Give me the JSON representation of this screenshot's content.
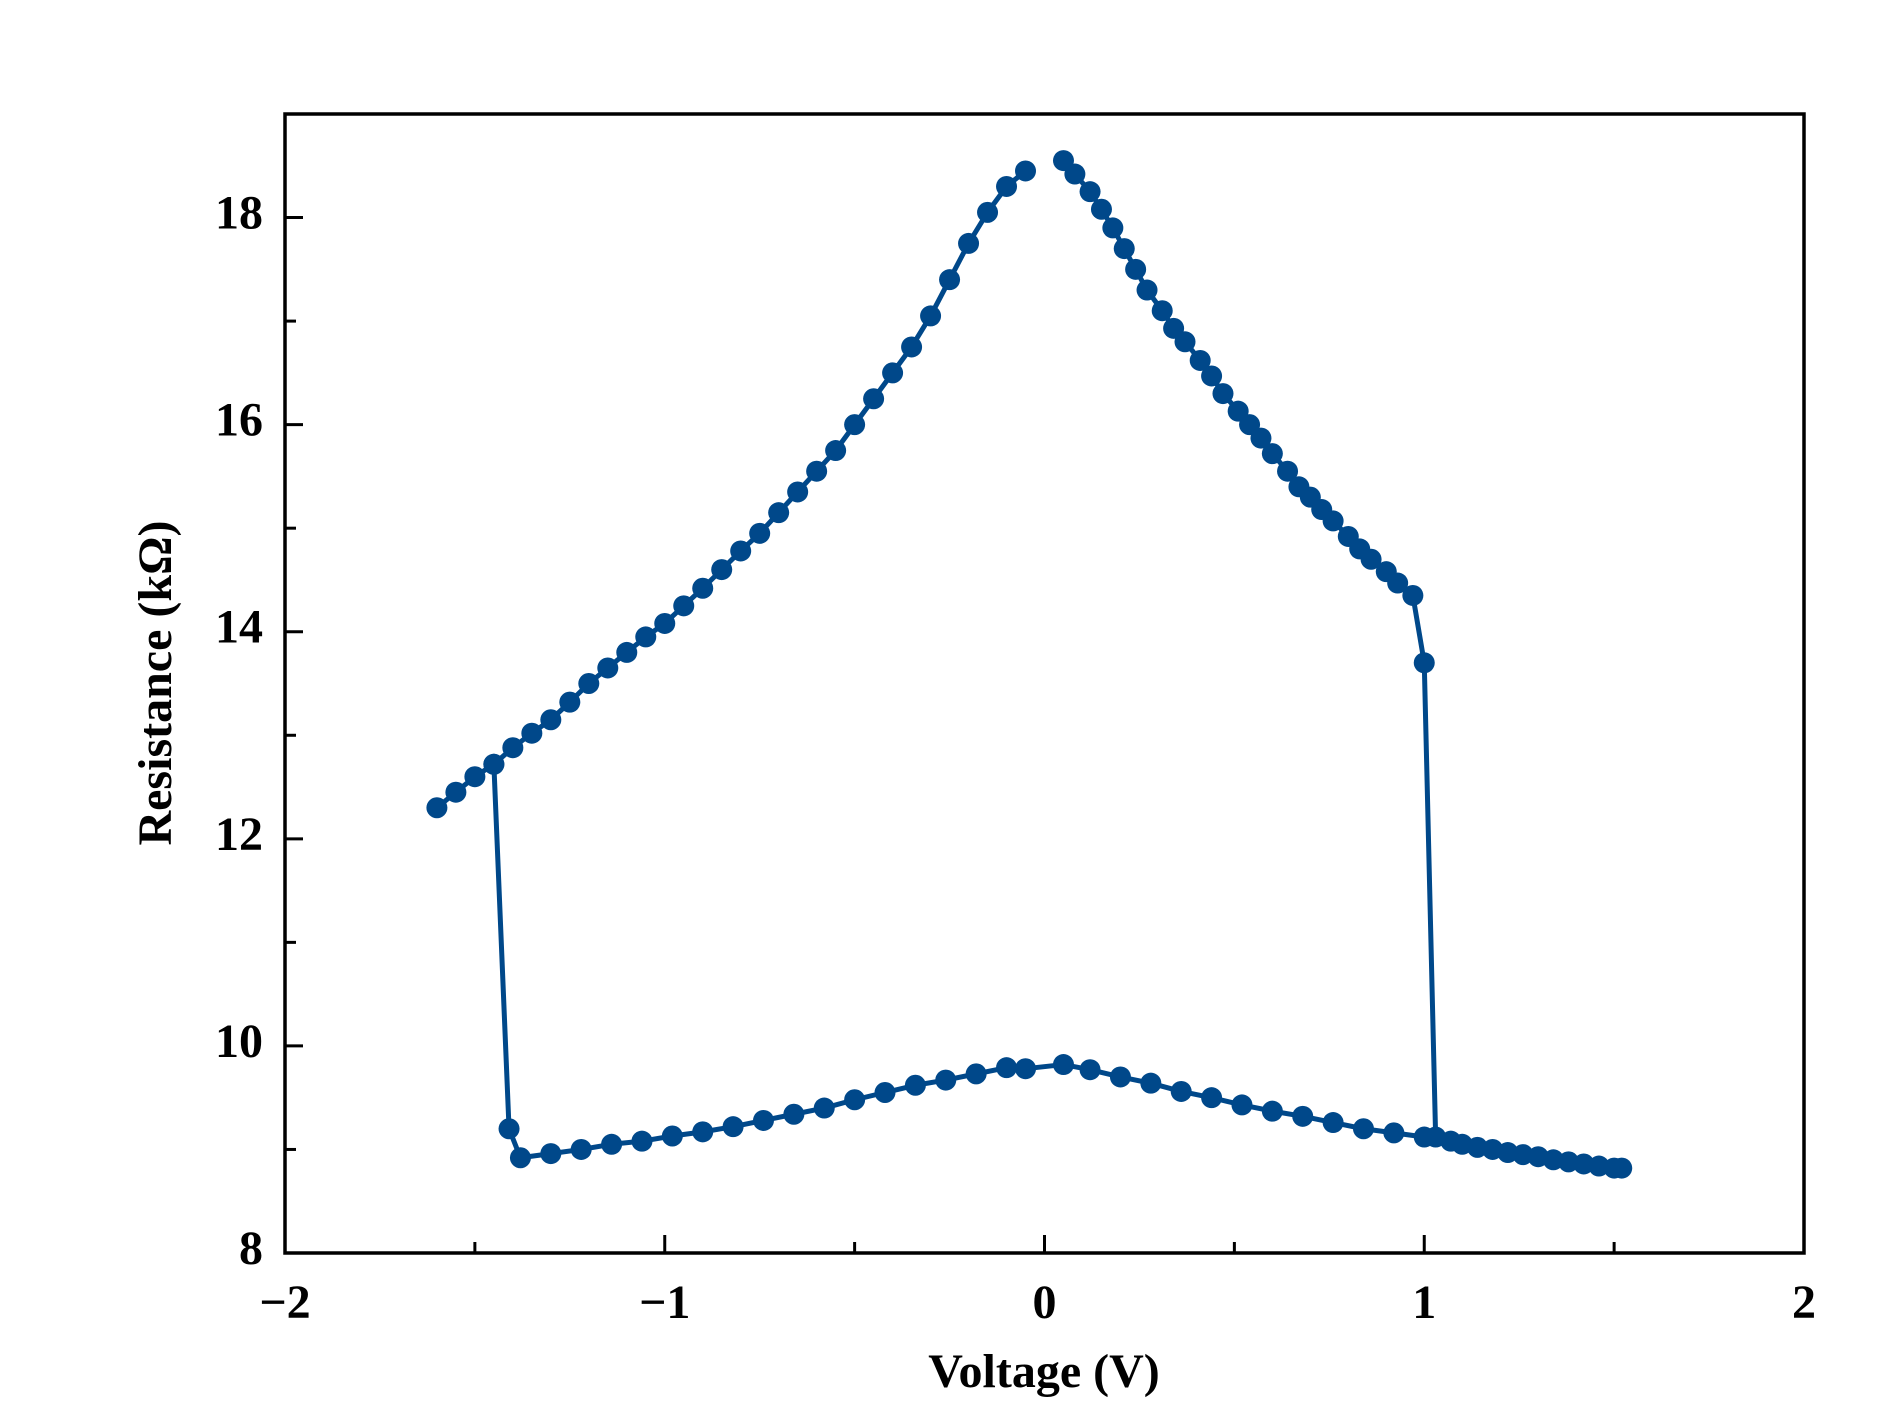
{
  "chart_data": {
    "type": "line",
    "xlabel": "Voltage (V)",
    "ylabel": "Resistance (kΩ)",
    "x": [
      -1.6,
      -1.55,
      -1.5,
      -1.45,
      -1.4,
      -1.35,
      -1.3,
      -1.25,
      -1.2,
      -1.15,
      -1.1,
      -1.05,
      -1.0,
      -0.95,
      -0.9,
      -0.85,
      -0.8,
      -0.75,
      -0.7,
      -0.65,
      -0.6,
      -0.55,
      -0.5,
      -0.45,
      -0.4,
      -0.35,
      -0.3,
      -0.25,
      -0.2,
      -0.15,
      -0.1,
      -0.05,
      null,
      0.05,
      0.08,
      0.12,
      0.15,
      0.18,
      0.21,
      0.24,
      0.27,
      0.31,
      0.34,
      0.37,
      0.41,
      0.44,
      0.47,
      0.51,
      0.54,
      0.57,
      0.6,
      0.64,
      0.67,
      0.7,
      0.73,
      0.76,
      0.8,
      0.83,
      0.86,
      0.9,
      0.93,
      0.97,
      1.0,
      1.03,
      1.07,
      1.1,
      1.14,
      1.18,
      1.22,
      1.26,
      1.3,
      1.34,
      1.38,
      1.42,
      1.46,
      1.5,
      1.52,
      null,
      -1.45,
      -1.41,
      -1.38,
      -1.3,
      -1.22,
      -1.14,
      -1.06,
      -0.98,
      -0.9,
      -0.82,
      -0.74,
      -0.66,
      -0.58,
      -0.5,
      -0.42,
      -0.34,
      -0.26,
      -0.18,
      -0.1,
      -0.05,
      0.05,
      0.12,
      0.2,
      0.28,
      0.36,
      0.44,
      0.52,
      0.6,
      0.68,
      0.76,
      0.84,
      0.92,
      1.0
    ],
    "series": [
      {
        "color": "#00488a",
        "values": [
          12.3,
          12.45,
          12.6,
          12.72,
          12.88,
          13.02,
          13.15,
          13.32,
          13.5,
          13.65,
          13.8,
          13.95,
          14.08,
          14.25,
          14.42,
          14.6,
          14.78,
          14.95,
          15.15,
          15.35,
          15.55,
          15.75,
          16.0,
          16.25,
          16.5,
          16.75,
          17.05,
          17.4,
          17.75,
          18.05,
          18.3,
          18.45,
          null,
          18.55,
          18.42,
          18.25,
          18.08,
          17.9,
          17.7,
          17.5,
          17.3,
          17.1,
          16.93,
          16.8,
          16.62,
          16.47,
          16.3,
          16.13,
          16.0,
          15.87,
          15.72,
          15.55,
          15.4,
          15.3,
          15.18,
          15.07,
          14.92,
          14.8,
          14.7,
          14.58,
          14.47,
          14.35,
          13.7,
          9.12,
          9.08,
          9.05,
          9.02,
          9.0,
          8.97,
          8.95,
          8.93,
          8.9,
          8.88,
          8.86,
          8.84,
          8.82,
          8.82,
          null,
          12.72,
          9.2,
          8.92,
          8.96,
          9.0,
          9.05,
          9.08,
          9.13,
          9.17,
          9.22,
          9.28,
          9.34,
          9.4,
          9.48,
          9.55,
          9.62,
          9.67,
          9.73,
          9.79,
          9.78,
          9.82,
          9.77,
          9.7,
          9.64,
          9.56,
          9.5,
          9.43,
          9.37,
          9.32,
          9.26,
          9.2,
          9.16,
          9.12
        ]
      }
    ],
    "xlim": [
      -2,
      2
    ],
    "ylim": [
      8,
      19
    ],
    "xticks": [
      {
        "value": -2,
        "label": "−2"
      },
      {
        "value": -1,
        "label": "−1"
      },
      0,
      1,
      2
    ],
    "yticks": [
      8,
      10,
      12,
      14,
      16,
      18
    ],
    "xminor": [
      -1.5,
      -0.5,
      0.5,
      1.5
    ],
    "yminor": [
      9,
      11,
      13,
      15,
      17
    ],
    "grid": false
  }
}
